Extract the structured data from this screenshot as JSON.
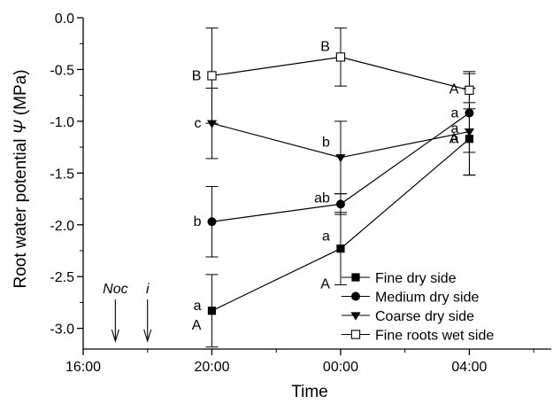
{
  "chart_data": {
    "type": "line",
    "xlabel": "Time",
    "ylabel_main": "Root water potential ",
    "ylabel_symbol": "Ψ",
    "ylabel_unit": " (MPa)",
    "x_hours_since_16": {
      "ticks": [
        0,
        4,
        8,
        12
      ],
      "range": [
        0,
        14.6
      ]
    },
    "x_tick_labels": [
      "16:00",
      "20:00",
      "00:00",
      "04:00"
    ],
    "ylim": [
      -3.2,
      0
    ],
    "y_ticks": [
      0,
      -0.5,
      -1.0,
      -1.5,
      -2.0,
      -2.5,
      -3.0
    ],
    "y_tick_labels": [
      "0.0",
      "-0.5",
      "-1.0",
      "-1.5",
      "-2.0",
      "-2.5",
      "-3.0"
    ],
    "series": [
      {
        "name": "Fine dry side",
        "marker": "square-filled",
        "x": [
          "20:00",
          "00:00",
          "04:00"
        ],
        "values": [
          -2.83,
          -2.23,
          -1.17
        ],
        "errors": [
          0.35,
          0.35,
          0.35
        ]
      },
      {
        "name": "Medium dry side",
        "marker": "circle-filled",
        "x": [
          "20:00",
          "00:00",
          "04:00"
        ],
        "values": [
          -1.97,
          -1.8,
          -0.92
        ],
        "errors": [
          0.34,
          0.1,
          0.38
        ]
      },
      {
        "name": "Coarse dry side",
        "marker": "triangle-down-filled",
        "x": [
          "20:00",
          "00:00",
          "04:00"
        ],
        "values": [
          -1.02,
          -1.35,
          -1.1
        ],
        "errors": [
          0.34,
          0.35,
          0.42
        ]
      },
      {
        "name": "Fine roots wet side",
        "marker": "square-open",
        "x": [
          "20:00",
          "00:00",
          "04:00"
        ],
        "values": [
          -0.56,
          -0.38,
          -0.7
        ],
        "errors": [
          0.46,
          0.28,
          0.18
        ]
      }
    ],
    "point_labels": [
      {
        "text": "a",
        "x": "20:00",
        "y": -2.78
      },
      {
        "text": "A",
        "x": "20:00",
        "y": -2.97
      },
      {
        "text": "b",
        "x": "20:00",
        "y": -1.97
      },
      {
        "text": "c",
        "x": "20:00",
        "y": -1.02
      },
      {
        "text": "B",
        "x": "20:00",
        "y": -0.56
      },
      {
        "text": "a",
        "x": "00:00",
        "y": -2.11
      },
      {
        "text": "A",
        "x": "00:00",
        "y": -2.57
      },
      {
        "text": "ab",
        "x": "00:00",
        "y": -1.74
      },
      {
        "text": "b",
        "x": "00:00",
        "y": -1.2
      },
      {
        "text": "B",
        "x": "00:00",
        "y": -0.28
      },
      {
        "text": "a",
        "x": "04:00",
        "y": -0.92
      },
      {
        "text": "a",
        "x": "04:00",
        "y": -1.07
      },
      {
        "text": "a",
        "x": "04:00",
        "y": -1.17
      },
      {
        "text": "A",
        "x": "04:00",
        "y": -1.17
      },
      {
        "text": "A",
        "x": "04:00",
        "y": -0.69
      }
    ],
    "annotations": [
      {
        "text": "Noc",
        "italic": true,
        "x": "17:00"
      },
      {
        "text": "i",
        "italic": true,
        "x": "18:00"
      }
    ],
    "legend_position": "bottom-right"
  }
}
